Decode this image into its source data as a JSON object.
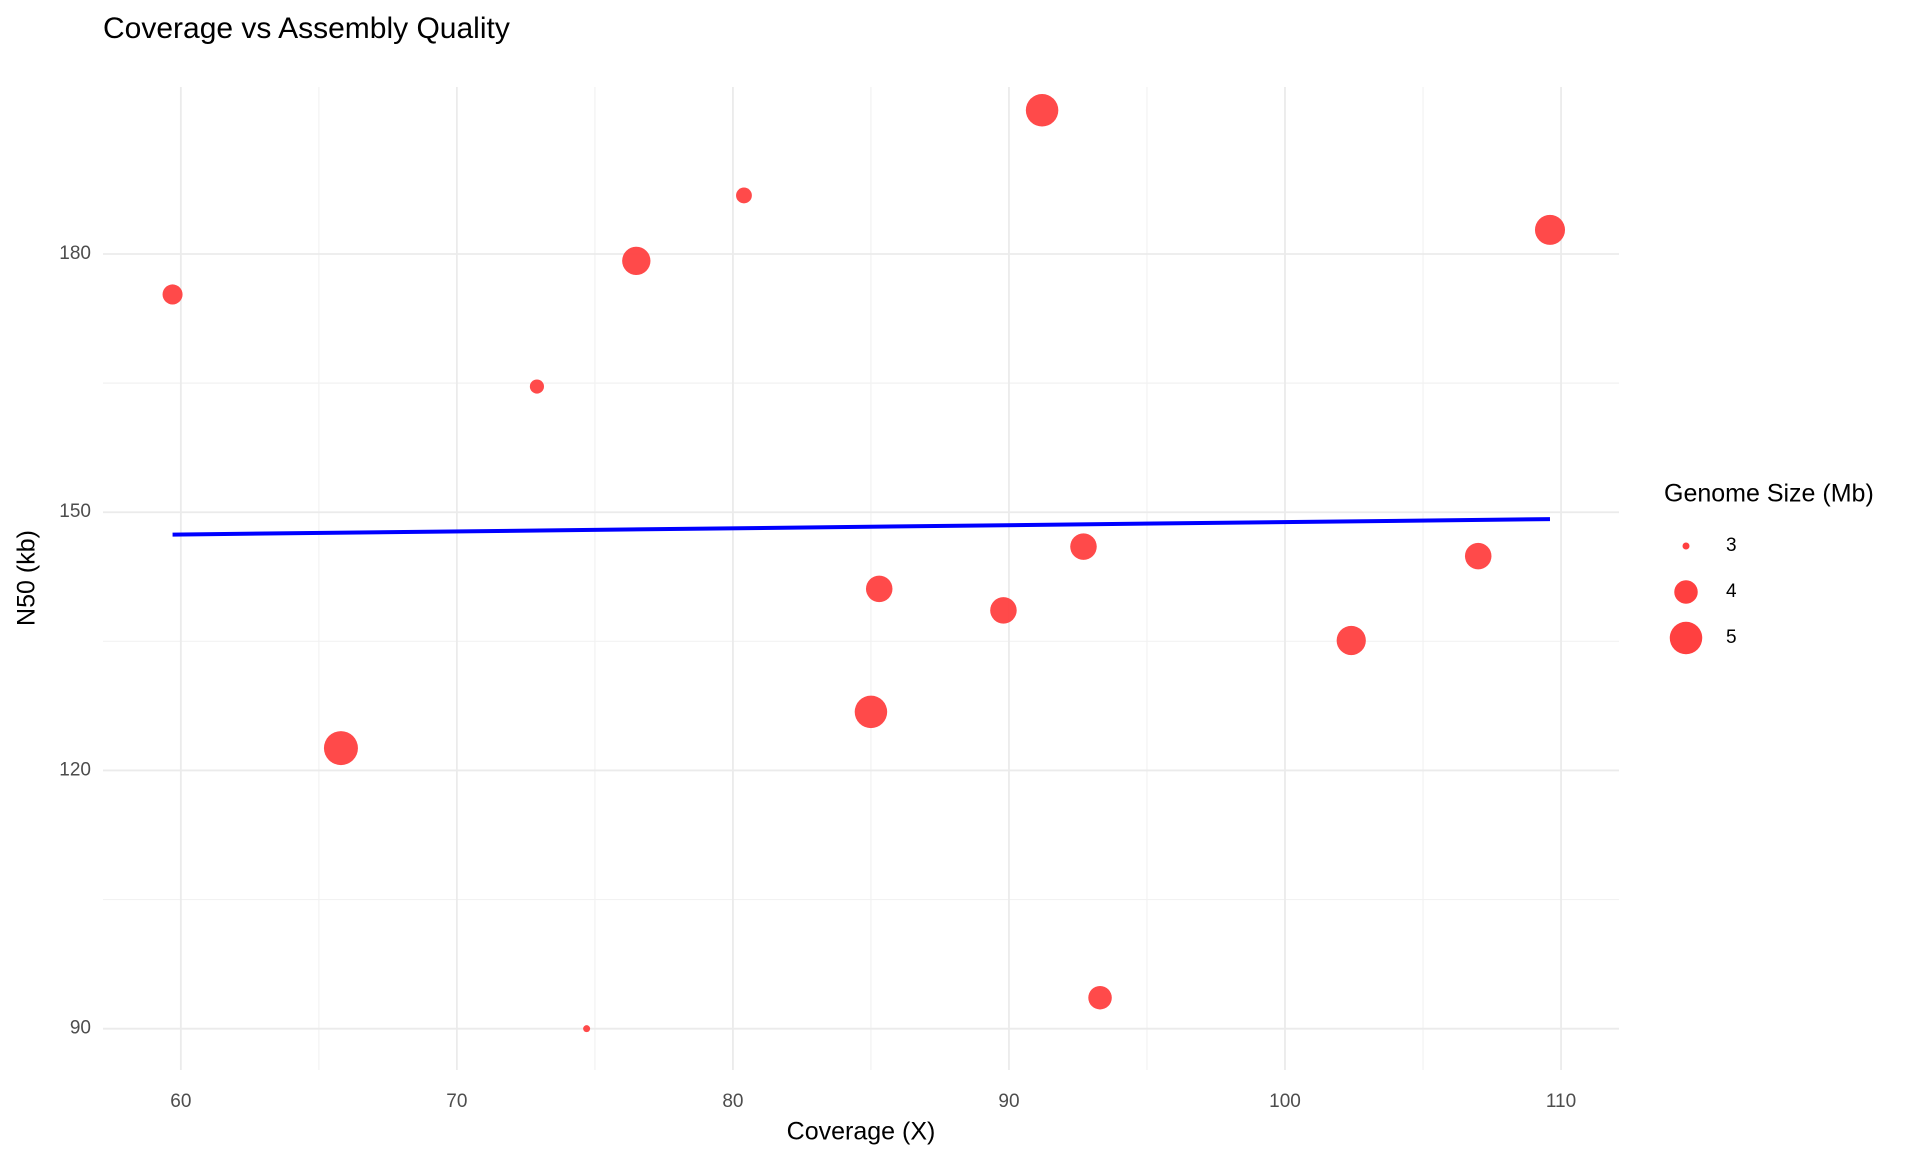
{
  "chart_data": {
    "type": "scatter",
    "title": "Coverage vs Assembly Quality",
    "x_label": "Coverage (X)",
    "y_label": "N50 (kb)",
    "size_legend_title": "Genome Size (Mb)",
    "size_legend": [
      3,
      4,
      5
    ],
    "color": "#ff4040",
    "x": [
      59.7,
      65.8,
      72.9,
      74.7,
      76.5,
      80.4,
      85.0,
      85.3,
      89.8,
      91.2,
      92.7,
      93.3,
      102.4,
      107.0,
      109.6
    ],
    "values": [
      175.3,
      122.6,
      164.6,
      90.0,
      179.2,
      186.8,
      126.8,
      141.1,
      138.6,
      196.7,
      146.0,
      93.6,
      135.1,
      144.9,
      182.8
    ],
    "sizes": [
      3.7,
      5.2,
      3.3,
      3.0,
      4.5,
      3.4,
      5.0,
      4.3,
      4.3,
      5.0,
      4.3,
      4.0,
      4.6,
      4.3,
      4.7
    ],
    "trend": {
      "color": "#0000ff",
      "x": [
        59.7,
        109.6
      ],
      "values": [
        147.4,
        149.2
      ]
    },
    "xlim": [
      57.18,
      112.1
    ],
    "xticks": [
      60,
      70,
      80,
      90,
      100,
      110
    ],
    "ylim": [
      85.2,
      199.4
    ],
    "yticks": [
      90,
      120,
      150,
      180
    ],
    "grid": true
  }
}
